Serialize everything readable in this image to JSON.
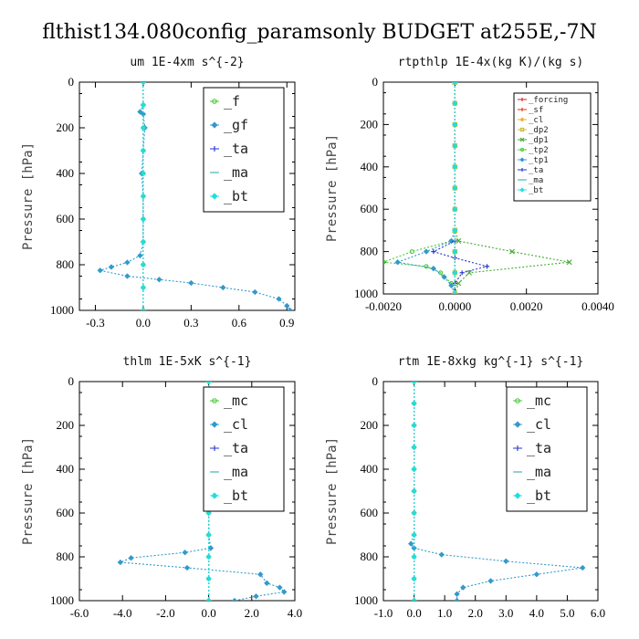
{
  "suptitle": "flthist134.080config_paramsonly  BUDGET at255E,-7N",
  "chart_data": [
    {
      "type": "line",
      "title": "um   1E-4xm s^{-2}",
      "ylabel": "Pressure [hPa]",
      "xlim": [
        -0.4,
        0.95
      ],
      "ylim": [
        1000,
        0
      ],
      "xticks": [
        "-0.3",
        "0.0",
        "0.3",
        "0.6",
        "0.9"
      ],
      "xtick_values": [
        -0.3,
        0.0,
        0.3,
        0.6,
        0.9
      ],
      "yticks": [
        "0",
        "200",
        "400",
        "600",
        "800",
        "1000"
      ],
      "ytick_values": [
        0,
        200,
        400,
        600,
        800,
        1000
      ],
      "legend": {
        "position": "top-right",
        "small": false
      },
      "series": [
        {
          "name": "_f",
          "color": "#44cc33",
          "marker": "circle",
          "y": [
            0,
            100,
            200,
            300,
            400,
            500,
            600,
            700,
            800,
            900,
            1000
          ],
          "x": [
            0,
            0,
            0,
            0,
            0,
            0,
            0,
            0,
            0,
            0,
            0
          ]
        },
        {
          "name": "_gf",
          "color": "#3399cc",
          "marker": "diamond",
          "y": [
            0,
            100,
            130,
            140,
            200,
            300,
            400,
            500,
            600,
            700,
            760,
            790,
            810,
            825,
            850,
            865,
            880,
            900,
            920,
            950,
            980,
            1000
          ],
          "x": [
            0,
            0,
            -0.02,
            0,
            0.01,
            0,
            -0.01,
            0,
            0,
            0,
            -0.02,
            -0.1,
            -0.2,
            -0.27,
            -0.1,
            0.1,
            0.3,
            0.5,
            0.7,
            0.85,
            0.9,
            0.92
          ]
        },
        {
          "name": "_ta",
          "color": "#2233cc",
          "marker": "plus",
          "y": [
            0,
            100,
            200,
            300,
            400,
            500,
            600,
            700,
            800,
            900,
            1000
          ],
          "x": [
            0,
            0,
            0,
            0,
            0,
            0,
            0,
            0,
            0,
            0,
            0
          ]
        },
        {
          "name": "_ma",
          "color": "#33aaaa",
          "marker": "dash",
          "y": [
            0,
            100,
            200,
            300,
            400,
            500,
            600,
            700,
            800,
            900,
            1000
          ],
          "x": [
            0,
            0,
            0,
            0,
            0,
            0,
            0,
            0,
            0,
            0,
            0
          ]
        },
        {
          "name": "_bt",
          "color": "#22dddd",
          "marker": "diamond",
          "y": [
            0,
            100,
            200,
            300,
            400,
            500,
            600,
            700,
            800,
            900,
            1000
          ],
          "x": [
            0,
            0,
            0,
            0,
            0,
            0,
            0,
            0,
            0,
            0,
            0
          ]
        }
      ]
    },
    {
      "type": "line",
      "title": "rtpthlp   1E-4x(kg K)/(kg s)",
      "ylabel": "Pressure [hPa]",
      "xlim": [
        -0.002,
        0.004
      ],
      "ylim": [
        1000,
        0
      ],
      "xticks": [
        "-0.0020",
        "0.0000",
        "0.0020",
        "0.0040"
      ],
      "xtick_values": [
        -0.002,
        0.0,
        0.002,
        0.004
      ],
      "yticks": [
        "0",
        "200",
        "400",
        "600",
        "800",
        "1000"
      ],
      "ytick_values": [
        0,
        200,
        400,
        600,
        800,
        1000
      ],
      "legend": {
        "position": "top-right",
        "small": true
      },
      "series": [
        {
          "name": "_forcing",
          "color": "#cc2222",
          "marker": "plus",
          "y": [
            0,
            100,
            200,
            300,
            400,
            500,
            600,
            700,
            800,
            900,
            1000
          ],
          "x": [
            0,
            0,
            0,
            0,
            0,
            0,
            0,
            0,
            0,
            0,
            0
          ]
        },
        {
          "name": "_sf",
          "color": "#dd3311",
          "marker": "plus",
          "y": [
            0,
            100,
            200,
            300,
            400,
            500,
            600,
            700,
            800,
            900,
            1000
          ],
          "x": [
            0,
            0,
            0,
            0,
            0,
            0,
            0,
            0,
            0,
            0,
            0
          ]
        },
        {
          "name": "_cl",
          "color": "#eeaa33",
          "marker": "star",
          "y": [
            0,
            100,
            200,
            300,
            400,
            500,
            600,
            700,
            800,
            900,
            1000
          ],
          "x": [
            0,
            0,
            0,
            0,
            0,
            0,
            0,
            0,
            0,
            0,
            0
          ]
        },
        {
          "name": "_dp2",
          "color": "#ccbb33",
          "marker": "square",
          "y": [
            0,
            100,
            200,
            300,
            400,
            500,
            600,
            700,
            800,
            900,
            1000
          ],
          "x": [
            0,
            0,
            0,
            0,
            0,
            0,
            0,
            0,
            0,
            0,
            0
          ]
        },
        {
          "name": "_dp1",
          "color": "#44aa33",
          "marker": "cross",
          "y": [
            0,
            700,
            750,
            800,
            850,
            900,
            950,
            1000
          ],
          "x": [
            0,
            0,
            0.0001,
            0.0016,
            0.0032,
            0.0004,
            0.0001,
            0
          ]
        },
        {
          "name": "_tp2",
          "color": "#44cc33",
          "marker": "circle",
          "y": [
            0,
            700,
            750,
            800,
            850,
            870,
            900,
            950,
            1000
          ],
          "x": [
            0,
            0,
            -0.0001,
            -0.0012,
            -0.002,
            -0.0008,
            -0.0004,
            -0.0001,
            0
          ]
        },
        {
          "name": "_tp1",
          "color": "#3399cc",
          "marker": "diamond",
          "y": [
            0,
            700,
            750,
            800,
            850,
            880,
            920,
            960,
            1000
          ],
          "x": [
            0,
            0,
            -0.0001,
            -0.0008,
            -0.0016,
            -0.0006,
            -0.0003,
            -0.0001,
            0
          ]
        },
        {
          "name": "_ta",
          "color": "#2233cc",
          "marker": "plus",
          "y": [
            0,
            700,
            750,
            800,
            830,
            870,
            900,
            950,
            1000
          ],
          "x": [
            0,
            0,
            0,
            -0.0006,
            0,
            0.0009,
            0.0002,
            0,
            0
          ]
        },
        {
          "name": "_ma",
          "color": "#33aaaa",
          "marker": "dash",
          "y": [
            0,
            100,
            200,
            300,
            400,
            500,
            600,
            700,
            800,
            900,
            1000
          ],
          "x": [
            0,
            0,
            0,
            0,
            0,
            0,
            0,
            0,
            0,
            0,
            0
          ]
        },
        {
          "name": "_bt",
          "color": "#22dddd",
          "marker": "diamond",
          "y": [
            0,
            100,
            200,
            300,
            400,
            500,
            600,
            700,
            800,
            900,
            1000
          ],
          "x": [
            0,
            0,
            0,
            0,
            0,
            0,
            0,
            0,
            0,
            0,
            0
          ]
        }
      ]
    },
    {
      "type": "line",
      "title": "thlm   1E-5xK s^{-1}",
      "ylabel": "Pressure [hPa]",
      "xlim": [
        -6.0,
        4.0
      ],
      "ylim": [
        1000,
        0
      ],
      "xticks": [
        "-6.0",
        "-4.0",
        "-2.0",
        "0.0",
        "2.0",
        "4.0"
      ],
      "xtick_values": [
        -6.0,
        -4.0,
        -2.0,
        0.0,
        2.0,
        4.0
      ],
      "yticks": [
        "0",
        "200",
        "400",
        "600",
        "800",
        "1000"
      ],
      "ytick_values": [
        0,
        200,
        400,
        600,
        800,
        1000
      ],
      "legend": {
        "position": "top-right",
        "small": false
      },
      "series": [
        {
          "name": "_mc",
          "color": "#44cc33",
          "marker": "circle",
          "y": [
            0,
            100,
            200,
            300,
            400,
            500,
            600,
            700,
            800,
            900,
            1000
          ],
          "x": [
            0,
            0,
            0,
            0,
            0,
            0,
            0,
            0,
            0,
            0,
            0
          ]
        },
        {
          "name": "_cl",
          "color": "#3399cc",
          "marker": "diamond",
          "y": [
            0,
            150,
            200,
            300,
            400,
            500,
            600,
            700,
            760,
            780,
            805,
            825,
            850,
            880,
            920,
            940,
            960,
            980,
            1000
          ],
          "x": [
            0,
            0.1,
            0,
            0.05,
            0,
            0.05,
            0,
            0,
            0.1,
            -1.1,
            -3.6,
            -4.1,
            -1.0,
            2.4,
            2.7,
            3.3,
            3.5,
            2.2,
            1.2
          ]
        },
        {
          "name": "_ta",
          "color": "#2233cc",
          "marker": "plus",
          "y": [
            0,
            100,
            200,
            300,
            400,
            500,
            600,
            700,
            800,
            900,
            1000
          ],
          "x": [
            0,
            0,
            0,
            0,
            0,
            0,
            0,
            0,
            0,
            0,
            0
          ]
        },
        {
          "name": "_ma",
          "color": "#33aaaa",
          "marker": "dash",
          "y": [
            0,
            100,
            200,
            300,
            400,
            500,
            600,
            700,
            800,
            900,
            1000
          ],
          "x": [
            0,
            0,
            0,
            0,
            0,
            0,
            0,
            0,
            0,
            0,
            0
          ]
        },
        {
          "name": "_bt",
          "color": "#22dddd",
          "marker": "diamond",
          "y": [
            0,
            100,
            200,
            300,
            400,
            500,
            600,
            700,
            800,
            900,
            1000
          ],
          "x": [
            0,
            0,
            0,
            0,
            0,
            0,
            0,
            0,
            0,
            0,
            0
          ]
        }
      ]
    },
    {
      "type": "line",
      "title": "rtm   1E-8xkg kg^{-1} s^{-1}",
      "ylabel": "Pressure [hPa]",
      "xlim": [
        -1.0,
        6.0
      ],
      "ylim": [
        1000,
        0
      ],
      "xticks": [
        "-1.0",
        "0.0",
        "1.0",
        "2.0",
        "3.0",
        "4.0",
        "5.0",
        "6.0"
      ],
      "xtick_values": [
        -1.0,
        0.0,
        1.0,
        2.0,
        3.0,
        4.0,
        5.0,
        6.0
      ],
      "yticks": [
        "0",
        "200",
        "400",
        "600",
        "800",
        "1000"
      ],
      "ytick_values": [
        0,
        200,
        400,
        600,
        800,
        1000
      ],
      "legend": {
        "position": "top-right",
        "small": false
      },
      "series": [
        {
          "name": "_mc",
          "color": "#44cc33",
          "marker": "circle",
          "y": [
            0,
            100,
            200,
            300,
            400,
            500,
            600,
            700,
            800,
            900,
            1000
          ],
          "x": [
            0,
            0,
            0,
            0,
            0,
            0,
            0,
            0,
            0,
            0,
            0
          ]
        },
        {
          "name": "_cl",
          "color": "#3399cc",
          "marker": "diamond",
          "y": [
            0,
            100,
            200,
            300,
            400,
            500,
            600,
            700,
            740,
            760,
            790,
            820,
            850,
            880,
            910,
            940,
            970,
            1000
          ],
          "x": [
            0,
            0,
            0,
            0,
            0,
            0,
            0,
            0,
            -0.1,
            0,
            0.9,
            3.0,
            5.5,
            4.0,
            2.5,
            1.6,
            1.4,
            1.4
          ]
        },
        {
          "name": "_ta",
          "color": "#2233cc",
          "marker": "plus",
          "y": [
            0,
            100,
            200,
            300,
            400,
            500,
            600,
            700,
            800,
            900,
            1000
          ],
          "x": [
            0,
            0,
            0,
            0,
            0,
            0,
            0,
            0,
            0,
            0,
            0
          ]
        },
        {
          "name": "_ma",
          "color": "#33aaaa",
          "marker": "dash",
          "y": [
            0,
            100,
            200,
            300,
            400,
            500,
            600,
            700,
            800,
            900,
            1000
          ],
          "x": [
            0,
            0,
            0,
            0,
            0,
            0,
            0,
            0,
            0,
            0,
            0
          ]
        },
        {
          "name": "_bt",
          "color": "#22dddd",
          "marker": "diamond",
          "y": [
            0,
            100,
            200,
            300,
            400,
            500,
            600,
            700,
            800,
            900,
            1000
          ],
          "x": [
            0,
            0,
            0,
            0,
            0,
            0,
            0,
            0,
            0,
            0,
            0
          ]
        }
      ]
    }
  ]
}
